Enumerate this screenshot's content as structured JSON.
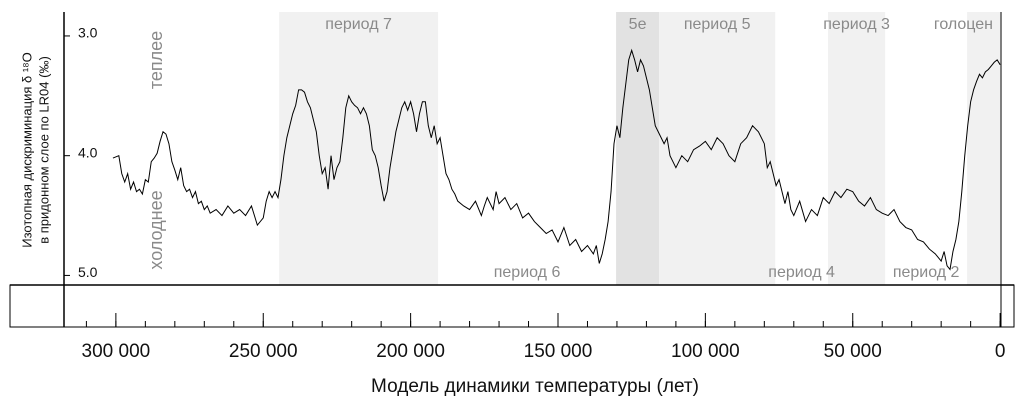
{
  "chart_data": {
    "type": "line",
    "x_label": "Модель динамики температуры (лет)",
    "y_label": [
      "Изотопная дискриминация δ ¹⁸O",
      "в придонном слое по LR04 (‰)"
    ],
    "annotations": [
      "теплее",
      "холоднее"
    ],
    "color": "#000000",
    "xlim": [
      317600,
      -300
    ],
    "ylim": [
      2.8,
      5.08
    ],
    "y_inverted": true,
    "xticks": [
      {
        "value": 300000,
        "label": "300 000"
      },
      {
        "value": 250000,
        "label": "250 000"
      },
      {
        "value": 200000,
        "label": "200 000"
      },
      {
        "value": 150000,
        "label": "150 000"
      },
      {
        "value": 100000,
        "label": "100 000"
      },
      {
        "value": 50000,
        "label": "50 000"
      },
      0
    ],
    "minor_tick_step": 10000,
    "yticks": [
      {
        "value": 3,
        "label": "3.0"
      },
      {
        "value": 4,
        "label": "4.0"
      },
      {
        "value": 5,
        "label": "5.0"
      }
    ],
    "periods": [
      {
        "label": "период 7",
        "start": 244600,
        "end": 190700,
        "shade": "#f1f1f1",
        "label_position": "top"
      },
      {
        "label": "период 6",
        "start": 190700,
        "end": 130300,
        "shade": null,
        "label_position": "bottom"
      },
      {
        "label": "5e",
        "start": 130300,
        "end": 115700,
        "shade": "#e2e2e2",
        "label_position": "top"
      },
      {
        "label": "период 5",
        "start": 115700,
        "end": 76300,
        "shade": "#f1f1f1",
        "label_position": "top"
      },
      {
        "label": "период 4",
        "start": 76300,
        "end": 58400,
        "shade": null,
        "label_position": "bottom"
      },
      {
        "label": "период 3",
        "start": 58400,
        "end": 39000,
        "shade": "#f1f1f1",
        "label_position": "top"
      },
      {
        "label": "период 2",
        "start": 39000,
        "end": 11200,
        "shade": null,
        "label_position": "bottom"
      },
      {
        "label": "голоцен",
        "start": 11200,
        "end": 0,
        "shade": "#f1f1f1",
        "label_position": "top"
      }
    ],
    "x": [
      301000,
      299000,
      298000,
      297000,
      296000,
      295000,
      294000,
      293000,
      292000,
      291000,
      290000,
      289000,
      288000,
      287000,
      286000,
      285000,
      284000,
      283000,
      282000,
      281000,
      280000,
      279000,
      278000,
      277000,
      276000,
      275000,
      274000,
      273000,
      272000,
      271000,
      270000,
      269000,
      268000,
      266000,
      264000,
      262000,
      260000,
      258000,
      256000,
      254000,
      252000,
      250000,
      249000,
      248000,
      247000,
      246000,
      245000,
      244000,
      243000,
      242000,
      241000,
      240000,
      239000,
      238000,
      237000,
      236000,
      235000,
      234000,
      233000,
      232000,
      231000,
      230000,
      229000,
      228000,
      227000,
      226000,
      225000,
      224000,
      223000,
      222000,
      221000,
      220000,
      219000,
      218000,
      217000,
      216000,
      215000,
      214000,
      213000,
      212000,
      211000,
      210000,
      209000,
      208000,
      207000,
      206000,
      205000,
      204000,
      203000,
      202000,
      201000,
      200000,
      199000,
      198000,
      197000,
      196000,
      195000,
      194000,
      193000,
      192000,
      191000,
      190000,
      189000,
      188000,
      187000,
      186000,
      185000,
      184000,
      182000,
      180000,
      178000,
      176000,
      175000,
      174000,
      172000,
      171000,
      170000,
      168000,
      166000,
      164000,
      162000,
      160000,
      158000,
      156000,
      154000,
      152000,
      150000,
      148000,
      146000,
      144000,
      142000,
      140000,
      138000,
      137000,
      136000,
      135000,
      134000,
      133000,
      132000,
      131000,
      130000,
      129000,
      128000,
      127000,
      126000,
      125000,
      124000,
      123000,
      122000,
      121000,
      120000,
      119000,
      118000,
      117000,
      116000,
      115000,
      114000,
      113000,
      112000,
      111000,
      110000,
      108000,
      106000,
      104000,
      102000,
      100000,
      98000,
      96000,
      94000,
      92000,
      90000,
      88000,
      86000,
      84000,
      82000,
      80000,
      79000,
      78000,
      77000,
      76000,
      75000,
      74000,
      73000,
      72000,
      71000,
      70000,
      68000,
      66000,
      64000,
      62000,
      60000,
      58000,
      56000,
      54000,
      52000,
      50000,
      48000,
      46000,
      44000,
      42000,
      40000,
      38000,
      36000,
      34000,
      32000,
      30000,
      28000,
      26000,
      24000,
      22000,
      20000,
      19000,
      18000,
      17000,
      16000,
      15000,
      14000,
      13000,
      12000,
      11000,
      10000,
      9000,
      8000,
      7000,
      6000,
      5000,
      4000,
      3000,
      2000,
      1000,
      0
    ],
    "values": [
      4.02,
      4.0,
      4.15,
      4.22,
      4.15,
      4.28,
      4.22,
      4.3,
      4.28,
      4.32,
      4.2,
      4.22,
      4.05,
      4.02,
      3.98,
      3.88,
      3.8,
      3.82,
      3.9,
      4.05,
      4.12,
      4.2,
      4.1,
      4.25,
      4.3,
      4.28,
      4.35,
      4.3,
      4.4,
      4.38,
      4.45,
      4.42,
      4.48,
      4.45,
      4.5,
      4.42,
      4.48,
      4.45,
      4.5,
      4.42,
      4.58,
      4.52,
      4.38,
      4.3,
      4.35,
      4.3,
      4.35,
      4.2,
      4.0,
      3.85,
      3.75,
      3.65,
      3.58,
      3.45,
      3.45,
      3.47,
      3.55,
      3.6,
      3.7,
      3.8,
      4.0,
      4.15,
      4.1,
      4.28,
      4.0,
      4.2,
      4.1,
      4.05,
      3.85,
      3.6,
      3.5,
      3.55,
      3.58,
      3.6,
      3.65,
      3.6,
      3.65,
      3.75,
      3.95,
      4.0,
      4.1,
      4.25,
      4.38,
      4.3,
      4.1,
      3.95,
      3.8,
      3.7,
      3.6,
      3.55,
      3.62,
      3.55,
      3.65,
      3.8,
      3.65,
      3.55,
      3.55,
      3.75,
      3.85,
      3.75,
      3.9,
      3.85,
      4.0,
      4.15,
      4.2,
      4.28,
      4.32,
      4.38,
      4.42,
      4.45,
      4.38,
      4.5,
      4.42,
      4.35,
      4.45,
      4.3,
      4.4,
      4.35,
      4.45,
      4.4,
      4.52,
      4.48,
      4.55,
      4.6,
      4.65,
      4.62,
      4.72,
      4.6,
      4.75,
      4.7,
      4.8,
      4.75,
      4.82,
      4.75,
      4.9,
      4.82,
      4.7,
      4.55,
      4.3,
      3.9,
      3.75,
      3.85,
      3.6,
      3.4,
      3.2,
      3.12,
      3.2,
      3.3,
      3.2,
      3.25,
      3.35,
      3.45,
      3.6,
      3.75,
      3.8,
      3.85,
      3.9,
      3.85,
      4.0,
      4.05,
      4.1,
      4.0,
      4.05,
      3.95,
      3.92,
      3.88,
      3.95,
      3.85,
      3.9,
      4.0,
      4.05,
      3.9,
      3.85,
      3.75,
      3.8,
      3.9,
      4.1,
      4.05,
      4.15,
      4.25,
      4.2,
      4.3,
      4.4,
      4.3,
      4.45,
      4.5,
      4.38,
      4.55,
      4.45,
      4.5,
      4.35,
      4.4,
      4.3,
      4.35,
      4.28,
      4.3,
      4.38,
      4.42,
      4.35,
      4.45,
      4.48,
      4.5,
      4.45,
      4.55,
      4.6,
      4.62,
      4.7,
      4.72,
      4.78,
      4.82,
      4.88,
      4.8,
      4.92,
      4.95,
      4.8,
      4.7,
      4.55,
      4.3,
      4.0,
      3.75,
      3.55,
      3.45,
      3.38,
      3.32,
      3.35,
      3.3,
      3.28,
      3.25,
      3.22,
      3.2,
      3.24
    ]
  }
}
